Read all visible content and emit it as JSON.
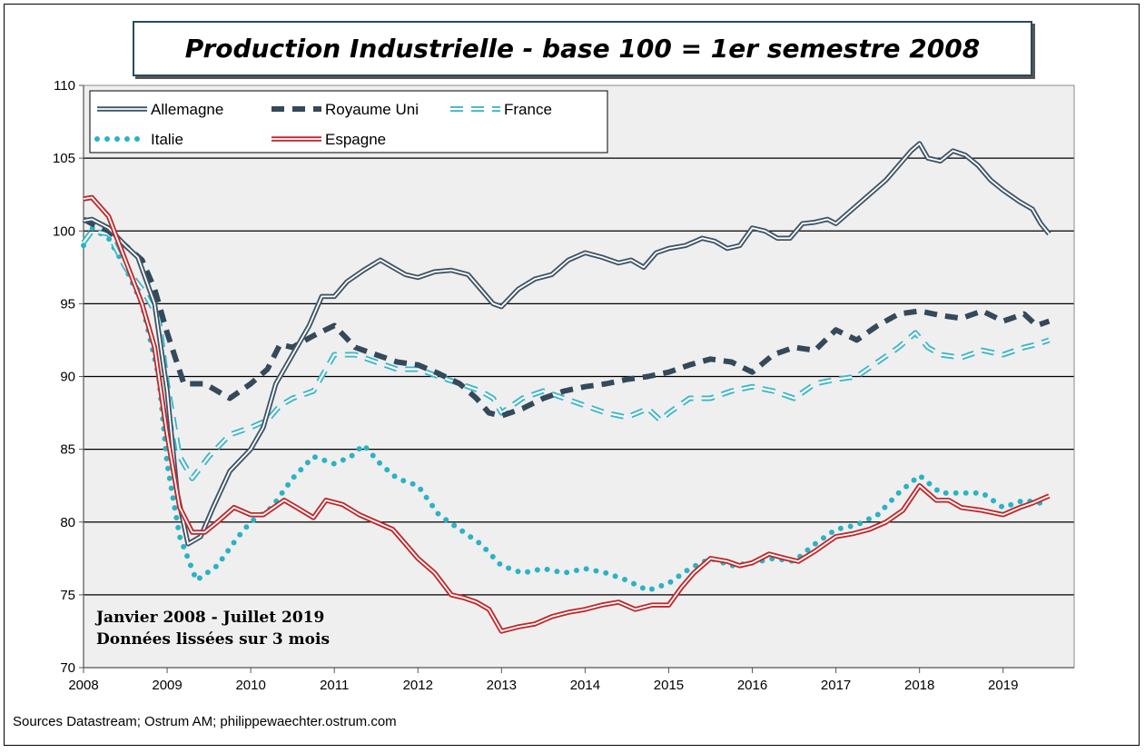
{
  "chart_data": {
    "type": "line",
    "title": "Production Industrielle - base 100 = 1er semestre 2008",
    "annotations": [
      "Janvier 2008 - Juillet 2019",
      "Données lissées sur 3 mois"
    ],
    "source": "Sources Datastream; Ostrum AM; philippewaechter.ostrum.com",
    "x_ticks": [
      "2008",
      "2009",
      "2010",
      "2011",
      "2012",
      "2013",
      "2014",
      "2015",
      "2016",
      "2017",
      "2018",
      "2019"
    ],
    "xlim": [
      2008.0,
      2019.85
    ],
    "ylim": [
      70,
      110
    ],
    "y_ticks": [
      70,
      75,
      80,
      85,
      90,
      95,
      100,
      105,
      110
    ],
    "grid": true,
    "legend_position": "top-left",
    "series": [
      {
        "name": "Allemagne",
        "color": "#3e5566",
        "style": "double",
        "x": [
          2008.0,
          2008.1,
          2008.3,
          2008.5,
          2008.65,
          2008.85,
          2009.0,
          2009.12,
          2009.25,
          2009.4,
          2009.55,
          2009.75,
          2010.0,
          2010.15,
          2010.3,
          2010.5,
          2010.7,
          2010.85,
          2011.0,
          2011.15,
          2011.35,
          2011.55,
          2011.7,
          2011.85,
          2012.0,
          2012.2,
          2012.4,
          2012.6,
          2012.75,
          2012.9,
          2013.0,
          2013.2,
          2013.4,
          2013.6,
          2013.8,
          2014.0,
          2014.2,
          2014.4,
          2014.55,
          2014.7,
          2014.85,
          2015.0,
          2015.2,
          2015.4,
          2015.55,
          2015.7,
          2015.85,
          2016.0,
          2016.15,
          2016.3,
          2016.45,
          2016.6,
          2016.75,
          2016.9,
          2017.0,
          2017.2,
          2017.4,
          2017.6,
          2017.75,
          2017.9,
          2018.0,
          2018.1,
          2018.25,
          2018.4,
          2018.55,
          2018.7,
          2018.85,
          2019.0,
          2019.2,
          2019.35,
          2019.45,
          2019.55
        ],
        "values": [
          100.7,
          100.8,
          100.2,
          99.0,
          98.2,
          95.0,
          89.0,
          82.0,
          78.5,
          79.0,
          81.0,
          83.5,
          85.0,
          86.5,
          89.5,
          91.5,
          93.5,
          95.5,
          95.5,
          96.5,
          97.3,
          98.0,
          97.5,
          97.0,
          96.8,
          97.2,
          97.3,
          97.0,
          96.0,
          95.0,
          94.8,
          96.0,
          96.7,
          97.0,
          98.0,
          98.5,
          98.2,
          97.8,
          98.0,
          97.5,
          98.5,
          98.8,
          99.0,
          99.5,
          99.3,
          98.8,
          99.0,
          100.2,
          100.0,
          99.5,
          99.5,
          100.5,
          100.6,
          100.8,
          100.5,
          101.5,
          102.5,
          103.5,
          104.5,
          105.5,
          106.0,
          105.0,
          104.8,
          105.5,
          105.2,
          104.5,
          103.5,
          102.8,
          102.0,
          101.5,
          100.5,
          99.8
        ]
      },
      {
        "name": "Royaume Uni",
        "color": "#34495a",
        "style": "dash",
        "x": [
          2008.0,
          2008.1,
          2008.3,
          2008.5,
          2008.7,
          2008.85,
          2009.0,
          2009.2,
          2009.45,
          2009.75,
          2010.0,
          2010.2,
          2010.35,
          2010.5,
          2010.75,
          2011.0,
          2011.25,
          2011.5,
          2011.75,
          2012.0,
          2012.25,
          2012.5,
          2012.7,
          2012.85,
          2013.0,
          2013.25,
          2013.5,
          2013.75,
          2014.0,
          2014.25,
          2014.5,
          2014.75,
          2015.0,
          2015.25,
          2015.5,
          2015.75,
          2016.0,
          2016.25,
          2016.5,
          2016.75,
          2017.0,
          2017.25,
          2017.5,
          2017.75,
          2018.0,
          2018.25,
          2018.5,
          2018.75,
          2019.0,
          2019.25,
          2019.4,
          2019.55
        ],
        "values": [
          100.8,
          100.5,
          100.0,
          99.0,
          98.0,
          96.0,
          93.0,
          89.5,
          89.5,
          88.5,
          89.5,
          90.5,
          92.2,
          92.0,
          92.8,
          93.5,
          92.0,
          91.5,
          91.0,
          90.8,
          90.2,
          89.5,
          88.5,
          87.5,
          87.3,
          87.8,
          88.5,
          89.0,
          89.3,
          89.5,
          89.8,
          90.0,
          90.3,
          90.8,
          91.2,
          91.0,
          90.3,
          91.5,
          92.0,
          91.8,
          93.2,
          92.5,
          93.5,
          94.3,
          94.5,
          94.2,
          94.0,
          94.5,
          93.8,
          94.3,
          93.5,
          93.8
        ]
      },
      {
        "name": "France",
        "color": "#3fb6c8",
        "style": "dash-outline",
        "x": [
          2008.0,
          2008.1,
          2008.3,
          2008.5,
          2008.7,
          2008.9,
          2009.0,
          2009.15,
          2009.3,
          2009.5,
          2009.75,
          2010.0,
          2010.2,
          2010.35,
          2010.5,
          2010.75,
          2011.0,
          2011.25,
          2011.5,
          2011.75,
          2012.0,
          2012.25,
          2012.5,
          2012.75,
          2012.9,
          2013.0,
          2013.25,
          2013.5,
          2013.75,
          2014.0,
          2014.25,
          2014.5,
          2014.75,
          2014.9,
          2015.0,
          2015.25,
          2015.5,
          2015.75,
          2016.0,
          2016.25,
          2016.5,
          2016.75,
          2017.0,
          2017.25,
          2017.5,
          2017.75,
          2017.95,
          2018.1,
          2018.25,
          2018.5,
          2018.75,
          2019.0,
          2019.25,
          2019.4,
          2019.55
        ],
        "values": [
          99.2,
          100.0,
          99.8,
          97.5,
          96.0,
          94.0,
          89.5,
          84.5,
          83.0,
          84.5,
          86.0,
          86.5,
          87.0,
          88.0,
          88.5,
          89.0,
          91.5,
          91.5,
          91.0,
          90.5,
          90.5,
          90.0,
          89.5,
          89.0,
          88.5,
          87.5,
          88.5,
          89.0,
          88.5,
          88.0,
          87.5,
          87.2,
          87.8,
          87.0,
          87.5,
          88.5,
          88.5,
          89.0,
          89.3,
          89.0,
          88.5,
          89.5,
          89.8,
          90.0,
          91.0,
          92.0,
          93.0,
          92.0,
          91.5,
          91.3,
          91.8,
          91.5,
          92.0,
          92.2,
          92.5
        ]
      },
      {
        "name": "Italie",
        "color": "#2ab3c4",
        "style": "dot",
        "x": [
          2008.0,
          2008.1,
          2008.3,
          2008.5,
          2008.7,
          2008.9,
          2009.0,
          2009.15,
          2009.35,
          2009.6,
          2009.85,
          2010.0,
          2010.25,
          2010.5,
          2010.75,
          2011.0,
          2011.2,
          2011.35,
          2011.55,
          2011.75,
          2012.0,
          2012.25,
          2012.5,
          2012.75,
          2013.0,
          2013.25,
          2013.5,
          2013.75,
          2014.0,
          2014.25,
          2014.5,
          2014.75,
          2015.0,
          2015.25,
          2015.5,
          2015.75,
          2016.0,
          2016.25,
          2016.5,
          2016.75,
          2017.0,
          2017.25,
          2017.5,
          2017.75,
          2018.0,
          2018.25,
          2018.5,
          2018.75,
          2019.0,
          2019.25,
          2019.55
        ],
        "values": [
          99.0,
          100.2,
          99.5,
          97.5,
          95.0,
          90.0,
          84.0,
          79.0,
          76.0,
          77.0,
          79.0,
          80.0,
          81.0,
          83.0,
          84.5,
          84.0,
          84.5,
          85.3,
          84.0,
          83.0,
          82.5,
          80.5,
          79.5,
          78.5,
          77.0,
          76.5,
          76.8,
          76.5,
          76.8,
          76.5,
          76.0,
          75.3,
          75.8,
          76.8,
          77.5,
          77.0,
          77.2,
          77.5,
          77.3,
          78.5,
          79.5,
          79.8,
          80.5,
          82.0,
          83.2,
          82.0,
          82.0,
          82.0,
          81.0,
          81.5,
          81.2
        ]
      },
      {
        "name": "Espagne",
        "color": "#c0282b",
        "style": "double",
        "x": [
          2008.0,
          2008.1,
          2008.3,
          2008.5,
          2008.7,
          2008.85,
          2009.0,
          2009.15,
          2009.3,
          2009.45,
          2009.6,
          2009.8,
          2010.0,
          2010.15,
          2010.4,
          2010.55,
          2010.75,
          2010.9,
          2011.1,
          2011.3,
          2011.5,
          2011.7,
          2011.85,
          2012.0,
          2012.2,
          2012.4,
          2012.55,
          2012.7,
          2012.85,
          2013.0,
          2013.2,
          2013.4,
          2013.6,
          2013.8,
          2014.0,
          2014.2,
          2014.4,
          2014.6,
          2014.8,
          2015.0,
          2015.15,
          2015.3,
          2015.5,
          2015.7,
          2015.85,
          2016.0,
          2016.2,
          2016.4,
          2016.55,
          2016.75,
          2017.0,
          2017.2,
          2017.4,
          2017.6,
          2017.8,
          2018.0,
          2018.2,
          2018.35,
          2018.5,
          2018.75,
          2019.0,
          2019.2,
          2019.35,
          2019.55
        ],
        "values": [
          102.2,
          102.3,
          101.0,
          98.0,
          95.0,
          92.0,
          86.0,
          81.0,
          79.3,
          79.3,
          80.0,
          81.0,
          80.5,
          80.5,
          81.5,
          81.0,
          80.3,
          81.5,
          81.2,
          80.5,
          80.0,
          79.5,
          78.5,
          77.5,
          76.5,
          75.0,
          74.8,
          74.5,
          74.0,
          72.5,
          72.8,
          73.0,
          73.5,
          73.8,
          74.0,
          74.3,
          74.5,
          74.0,
          74.3,
          74.3,
          75.5,
          76.5,
          77.5,
          77.3,
          77.0,
          77.2,
          77.8,
          77.5,
          77.3,
          78.0,
          79.0,
          79.2,
          79.5,
          80.0,
          80.8,
          82.5,
          81.5,
          81.5,
          81.0,
          80.8,
          80.5,
          81.0,
          81.3,
          81.8
        ]
      }
    ]
  }
}
